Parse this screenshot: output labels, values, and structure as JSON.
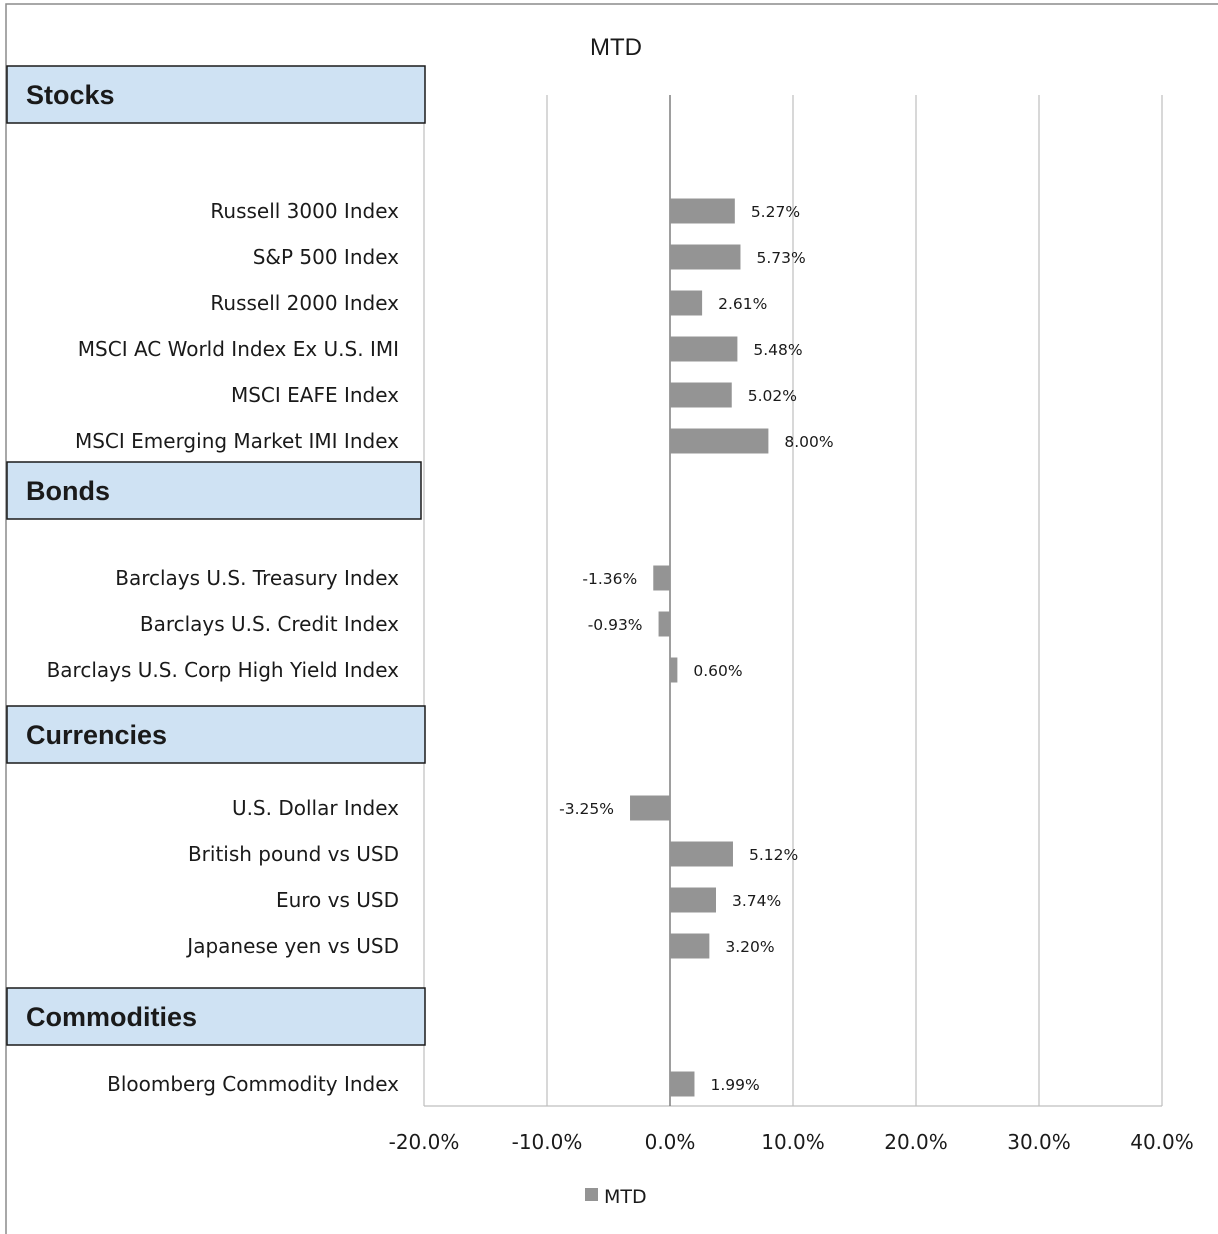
{
  "chart_data": {
    "type": "bar",
    "orientation": "horizontal",
    "title": "MTD",
    "xlabel": "",
    "ylabel": "",
    "xlim": [
      -20,
      40
    ],
    "x_ticks": [
      "-20.0%",
      "-10.0%",
      "0.0%",
      "10.0%",
      "20.0%",
      "30.0%",
      "40.0%"
    ],
    "grid": true,
    "legend": {
      "position": "bottom",
      "entries": [
        "MTD"
      ]
    },
    "bar_color": "#949494",
    "group_color": "#cfe2f3",
    "groups": [
      {
        "name": "Stocks",
        "items": [
          {
            "label": "Russell 3000 Index",
            "value": 5.27,
            "display": "5.27%"
          },
          {
            "label": "S&P 500 Index",
            "value": 5.73,
            "display": "5.73%"
          },
          {
            "label": "Russell 2000 Index",
            "value": 2.61,
            "display": "2.61%"
          },
          {
            "label": "MSCI AC World Index Ex U.S. IMI",
            "value": 5.48,
            "display": "5.48%"
          },
          {
            "label": "MSCI EAFE Index",
            "value": 5.02,
            "display": "5.02%"
          },
          {
            "label": "MSCI Emerging Market IMI Index",
            "value": 8.0,
            "display": "8.00%"
          }
        ]
      },
      {
        "name": "Bonds",
        "items": [
          {
            "label": "Barclays U.S. Treasury Index",
            "value": -1.36,
            "display": "-1.36%"
          },
          {
            "label": "Barclays U.S. Credit Index",
            "value": -0.93,
            "display": "-0.93%"
          },
          {
            "label": "Barclays U.S. Corp High Yield Index",
            "value": 0.6,
            "display": "0.60%"
          }
        ]
      },
      {
        "name": "Currencies",
        "items": [
          {
            "label": "U.S. Dollar Index",
            "value": -3.25,
            "display": "-3.25%"
          },
          {
            "label": "British pound vs USD",
            "value": 5.12,
            "display": "5.12%"
          },
          {
            "label": "Euro vs USD",
            "value": 3.74,
            "display": "3.74%"
          },
          {
            "label": "Japanese yen vs USD",
            "value": 3.2,
            "display": "3.20%"
          }
        ]
      },
      {
        "name": "Commodities",
        "items": [
          {
            "label": "Bloomberg Commodity Index",
            "value": 1.99,
            "display": "1.99%"
          }
        ]
      }
    ]
  }
}
